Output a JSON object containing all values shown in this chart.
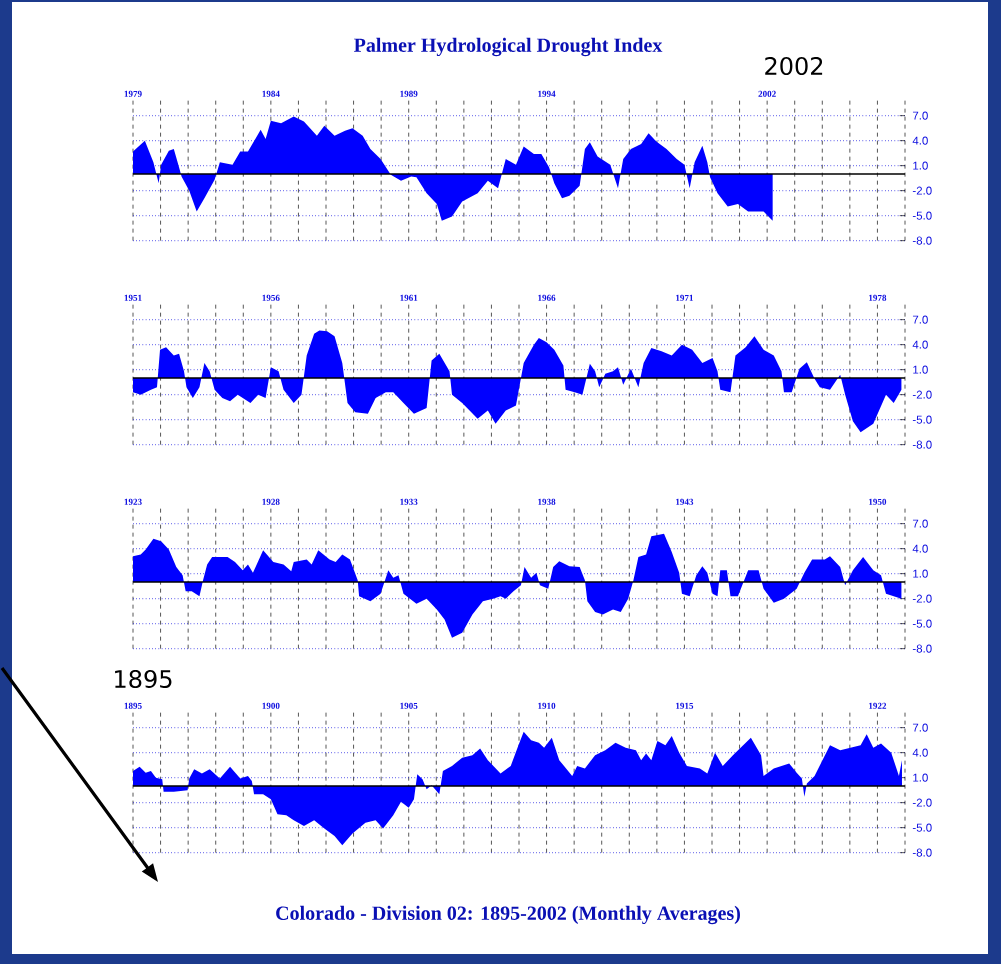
{
  "chart_data": [
    {
      "type": "area",
      "title": "Palmer Hydrological Drought Index",
      "annotations": [
        "2002"
      ],
      "color": "#0000ff",
      "grid": true,
      "ref_lines": [
        {
          "axis": "y",
          "value": 0,
          "color": "#000000"
        }
      ],
      "xlim": [
        1979,
        2007
      ],
      "ylim": [
        -8,
        9
      ],
      "xticks": [
        1979,
        {
          "value": 1980,
          "label": null
        },
        {
          "value": 1981,
          "label": null
        },
        {
          "value": 1982,
          "label": null
        },
        {
          "value": 1983,
          "label": null
        },
        1984,
        {
          "value": 1985,
          "label": null
        },
        {
          "value": 1986,
          "label": null
        },
        {
          "value": 1987,
          "label": null
        },
        {
          "value": 1988,
          "label": null
        },
        1989,
        {
          "value": 1990,
          "label": null
        },
        {
          "value": 1991,
          "label": null
        },
        {
          "value": 1992,
          "label": null
        },
        {
          "value": 1993,
          "label": null
        },
        1994,
        {
          "value": 1995,
          "label": null
        },
        {
          "value": 1996,
          "label": null
        },
        {
          "value": 1997,
          "label": null
        },
        {
          "value": 1998,
          "label": null
        },
        {
          "value": 1999,
          "label": null
        },
        {
          "value": 2000,
          "label": null
        },
        {
          "value": 2001,
          "label": null
        },
        2002,
        {
          "value": 2003,
          "label": null
        },
        {
          "value": 2004,
          "label": null
        },
        {
          "value": 2005,
          "label": null
        },
        {
          "value": 2006,
          "label": null
        },
        {
          "value": 2007,
          "label": null
        }
      ],
      "yticks": [
        {
          "value": 7,
          "label": "7.0"
        },
        {
          "value": 4,
          "label": "4.0"
        },
        {
          "value": 1,
          "label": "1.0"
        },
        {
          "value": -2,
          "label": "-2.0"
        },
        {
          "value": -5,
          "label": "-5.0"
        },
        {
          "value": -8,
          "label": "-8.0"
        }
      ],
      "x": [
        1979.0,
        1979.43,
        1979.74,
        1979.93,
        1980.02,
        1980.3,
        1980.48,
        1980.67,
        1980.76,
        1981.04,
        1981.31,
        1981.59,
        1981.96,
        1982.15,
        1982.61,
        1982.89,
        1983.17,
        1983.63,
        1983.81,
        1984.0,
        1984.37,
        1984.83,
        1985.2,
        1985.67,
        1985.94,
        1986.31,
        1986.69,
        1986.96,
        1987.33,
        1987.61,
        1987.98,
        1988.35,
        1988.72,
        1989.09,
        1989.28,
        1989.65,
        1990.02,
        1990.2,
        1990.57,
        1990.94,
        1991.5,
        1991.87,
        1992.24,
        1992.52,
        1992.89,
        1993.17,
        1993.54,
        1993.81,
        1994.09,
        1994.28,
        1994.56,
        1994.83,
        1995.2,
        1995.39,
        1995.57,
        1995.85,
        1996.31,
        1996.59,
        1996.78,
        1997.06,
        1997.43,
        1997.7,
        1997.98,
        1998.35,
        1998.72,
        1999.0,
        1999.19,
        1999.37,
        1999.65,
        1999.83,
        1999.93,
        2000.2,
        2000.57,
        2000.94,
        2001.31,
        2001.87,
        2002.2
      ],
      "values": [
        2.7,
        4.0,
        1.4,
        -1.1,
        1.1,
        2.8,
        3.0,
        0.8,
        -0.3,
        -2.0,
        -4.5,
        -2.9,
        -0.7,
        1.4,
        1.1,
        2.7,
        2.7,
        5.3,
        4.2,
        6.4,
        6.1,
        6.9,
        6.3,
        4.6,
        5.8,
        4.6,
        5.2,
        5.5,
        4.6,
        3.0,
        1.8,
        -0.1,
        -0.8,
        -0.3,
        -0.4,
        -2.3,
        -3.6,
        -5.6,
        -5.1,
        -3.3,
        -2.3,
        -0.8,
        -1.7,
        1.8,
        1.1,
        3.3,
        2.4,
        2.4,
        0.8,
        -1.1,
        -2.9,
        -2.6,
        -1.4,
        3.0,
        3.8,
        2.1,
        1.1,
        -1.7,
        1.8,
        3.0,
        3.6,
        4.9,
        3.9,
        3.0,
        1.8,
        1.1,
        -1.7,
        1.4,
        3.4,
        1.4,
        -0.4,
        -2.3,
        -3.9,
        -3.6,
        -4.5,
        -4.5,
        -5.6
      ]
    },
    {
      "type": "area",
      "color": "#0000ff",
      "grid": true,
      "ref_lines": [
        {
          "axis": "y",
          "value": 0,
          "color": "#000000"
        }
      ],
      "xlim": [
        1951,
        1979
      ],
      "ylim": [
        -8,
        9
      ],
      "xticks": [
        1951,
        {
          "value": 1952,
          "label": null
        },
        {
          "value": 1953,
          "label": null
        },
        {
          "value": 1954,
          "label": null
        },
        {
          "value": 1955,
          "label": null
        },
        1956,
        {
          "value": 1957,
          "label": null
        },
        {
          "value": 1958,
          "label": null
        },
        {
          "value": 1959,
          "label": null
        },
        {
          "value": 1960,
          "label": null
        },
        1961,
        {
          "value": 1962,
          "label": null
        },
        {
          "value": 1963,
          "label": null
        },
        {
          "value": 1964,
          "label": null
        },
        {
          "value": 1965,
          "label": null
        },
        1966,
        {
          "value": 1967,
          "label": null
        },
        {
          "value": 1968,
          "label": null
        },
        {
          "value": 1969,
          "label": null
        },
        {
          "value": 1970,
          "label": null
        },
        1971,
        {
          "value": 1972,
          "label": null
        },
        {
          "value": 1973,
          "label": null
        },
        {
          "value": 1974,
          "label": null
        },
        {
          "value": 1975,
          "label": null
        },
        {
          "value": 1976,
          "label": null
        },
        {
          "value": 1977,
          "label": null
        },
        1978,
        {
          "value": 1979,
          "label": null
        }
      ],
      "yticks": [
        {
          "value": 7,
          "label": "7.0"
        },
        {
          "value": 4,
          "label": "4.0"
        },
        {
          "value": 1,
          "label": "1.0"
        },
        {
          "value": -2,
          "label": "-2.0"
        },
        {
          "value": -5,
          "label": "-5.0"
        },
        {
          "value": -8,
          "label": "-8.0"
        }
      ],
      "x": [
        1951.0,
        1951.28,
        1951.65,
        1951.87,
        1951.98,
        1952.2,
        1952.48,
        1952.67,
        1952.85,
        1952.94,
        1953.17,
        1953.41,
        1953.59,
        1953.78,
        1953.96,
        1954.24,
        1954.52,
        1954.8,
        1955.26,
        1955.54,
        1955.81,
        1956.0,
        1956.28,
        1956.46,
        1956.83,
        1957.11,
        1957.3,
        1957.57,
        1957.76,
        1958.04,
        1958.31,
        1958.59,
        1958.78,
        1959.06,
        1959.52,
        1959.8,
        1960.17,
        1960.44,
        1960.81,
        1961.19,
        1961.65,
        1961.83,
        1962.11,
        1962.48,
        1962.57,
        1962.94,
        1963.5,
        1963.87,
        1964.15,
        1964.52,
        1964.89,
        1965.17,
        1965.54,
        1965.72,
        1966.0,
        1966.28,
        1966.61,
        1966.69,
        1967.02,
        1967.3,
        1967.57,
        1967.76,
        1967.91,
        1968.13,
        1968.41,
        1968.59,
        1968.78,
        1969.06,
        1969.33,
        1969.52,
        1969.8,
        1970.17,
        1970.54,
        1970.91,
        1971.28,
        1971.65,
        1972.02,
        1972.2,
        1972.3,
        1972.67,
        1972.85,
        1973.22,
        1973.54,
        1973.87,
        1974.24,
        1974.52,
        1974.61,
        1974.89,
        1975.17,
        1975.44,
        1975.72,
        1975.91,
        1976.28,
        1976.65,
        1976.83,
        1977.11,
        1977.39,
        1977.85,
        1978.31,
        1978.59,
        1978.87
      ],
      "values": [
        -1.7,
        -2.0,
        -1.4,
        -1.1,
        3.4,
        3.7,
        2.7,
        2.9,
        0.8,
        -1.1,
        -2.4,
        -1.1,
        1.8,
        0.8,
        -1.4,
        -2.4,
        -2.8,
        -2.0,
        -3.0,
        -2.0,
        -2.4,
        1.3,
        0.8,
        -1.4,
        -3.0,
        -2.0,
        2.7,
        5.3,
        5.7,
        5.6,
        5.0,
        1.8,
        -3.0,
        -4.1,
        -4.3,
        -2.4,
        -1.7,
        -1.7,
        -3.0,
        -4.3,
        -3.6,
        2.1,
        2.9,
        0.8,
        -2.0,
        -3.0,
        -4.9,
        -3.9,
        -5.5,
        -3.9,
        -3.3,
        1.8,
        4.0,
        4.8,
        4.3,
        3.4,
        1.5,
        -1.4,
        -1.7,
        -2.0,
        1.7,
        0.8,
        -1.1,
        0.5,
        0.8,
        1.3,
        -0.8,
        1.1,
        -1.1,
        1.8,
        3.6,
        3.2,
        2.7,
        4.0,
        3.4,
        1.8,
        2.4,
        0.8,
        -1.4,
        -1.7,
        2.7,
        3.7,
        5.0,
        3.4,
        2.7,
        0.8,
        -1.7,
        -1.7,
        1.1,
        1.9,
        -0.1,
        -1.1,
        -1.4,
        0.4,
        -2.0,
        -5.2,
        -6.5,
        -5.5,
        -2.0,
        -3.0,
        -1.4
      ]
    },
    {
      "type": "area",
      "color": "#0000ff",
      "grid": true,
      "ref_lines": [
        {
          "axis": "y",
          "value": 0,
          "color": "#000000"
        }
      ],
      "xlim": [
        1923,
        1951
      ],
      "ylim": [
        -8,
        9
      ],
      "xticks": [
        1923,
        {
          "value": 1924,
          "label": null
        },
        {
          "value": 1925,
          "label": null
        },
        {
          "value": 1926,
          "label": null
        },
        {
          "value": 1927,
          "label": null
        },
        1928,
        {
          "value": 1929,
          "label": null
        },
        {
          "value": 1930,
          "label": null
        },
        {
          "value": 1931,
          "label": null
        },
        {
          "value": 1932,
          "label": null
        },
        1933,
        {
          "value": 1934,
          "label": null
        },
        {
          "value": 1935,
          "label": null
        },
        {
          "value": 1936,
          "label": null
        },
        {
          "value": 1937,
          "label": null
        },
        1938,
        {
          "value": 1939,
          "label": null
        },
        {
          "value": 1940,
          "label": null
        },
        {
          "value": 1941,
          "label": null
        },
        {
          "value": 1942,
          "label": null
        },
        1943,
        {
          "value": 1944,
          "label": null
        },
        {
          "value": 1945,
          "label": null
        },
        {
          "value": 1946,
          "label": null
        },
        {
          "value": 1947,
          "label": null
        },
        {
          "value": 1948,
          "label": null
        },
        {
          "value": 1949,
          "label": null
        },
        1950,
        {
          "value": 1951,
          "label": null
        }
      ],
      "yticks": [
        {
          "value": 7,
          "label": "7.0"
        },
        {
          "value": 4,
          "label": "4.0"
        },
        {
          "value": 1,
          "label": "1.0"
        },
        {
          "value": -2,
          "label": "-2.0"
        },
        {
          "value": -5,
          "label": "-5.0"
        },
        {
          "value": -8,
          "label": "-8.0"
        }
      ],
      "x": [
        1923.0,
        1923.28,
        1923.46,
        1923.74,
        1924.02,
        1924.3,
        1924.57,
        1924.8,
        1924.91,
        1925.13,
        1925.41,
        1925.54,
        1925.69,
        1925.87,
        1926.43,
        1926.7,
        1926.98,
        1927.17,
        1927.35,
        1927.72,
        1928.09,
        1928.46,
        1928.74,
        1928.83,
        1929.3,
        1929.48,
        1929.72,
        1930.13,
        1930.35,
        1930.59,
        1930.87,
        1931.15,
        1931.2,
        1931.61,
        1931.98,
        1932.26,
        1932.44,
        1932.63,
        1932.81,
        1933.28,
        1933.65,
        1934.02,
        1934.3,
        1934.57,
        1934.94,
        1935.31,
        1935.69,
        1936.06,
        1936.33,
        1936.52,
        1936.8,
        1937.07,
        1937.2,
        1937.44,
        1937.63,
        1937.76,
        1938.06,
        1938.24,
        1938.46,
        1938.83,
        1939.2,
        1939.39,
        1939.48,
        1939.76,
        1940.04,
        1940.41,
        1940.69,
        1940.96,
        1941.15,
        1941.33,
        1941.61,
        1941.8,
        1942.26,
        1942.54,
        1942.81,
        1942.91,
        1943.19,
        1943.43,
        1943.65,
        1943.83,
        1944.02,
        1944.2,
        1944.3,
        1944.54,
        1944.67,
        1944.94,
        1945.31,
        1945.69,
        1945.87,
        1946.24,
        1946.61,
        1947.07,
        1947.35,
        1947.63,
        1948.09,
        1948.28,
        1948.65,
        1948.83,
        1949.11,
        1949.48,
        1949.85,
        1950.13,
        1950.31,
        1950.87
      ],
      "values": [
        3.1,
        3.3,
        3.9,
        5.2,
        4.9,
        3.9,
        1.8,
        0.8,
        -1.1,
        -1.1,
        -1.7,
        0.2,
        2.1,
        3.0,
        3.0,
        2.4,
        1.4,
        2.1,
        1.1,
        3.8,
        2.4,
        2.1,
        1.3,
        2.4,
        2.7,
        2.1,
        3.8,
        2.7,
        2.4,
        3.3,
        2.7,
        0.2,
        -1.7,
        -2.3,
        -1.4,
        1.4,
        0.5,
        0.8,
        -1.4,
        -2.6,
        -2.0,
        -3.3,
        -4.5,
        -6.7,
        -6.1,
        -3.9,
        -2.3,
        -2.0,
        -1.7,
        -2.0,
        -1.1,
        -0.4,
        1.8,
        0.5,
        1.1,
        -0.4,
        -0.8,
        1.8,
        2.5,
        1.9,
        1.8,
        0.2,
        -2.3,
        -3.6,
        -3.9,
        -3.3,
        -3.6,
        -2.0,
        0.2,
        3.0,
        3.3,
        5.5,
        5.8,
        3.6,
        1.1,
        -1.4,
        -1.7,
        0.8,
        1.9,
        1.1,
        -1.4,
        -1.7,
        1.4,
        1.4,
        -1.7,
        -1.7,
        1.4,
        1.4,
        -0.8,
        -2.5,
        -2.0,
        -0.8,
        1.1,
        2.7,
        2.7,
        3.1,
        1.8,
        -0.4,
        1.4,
        3.0,
        1.4,
        0.8,
        -1.4,
        -2.0
      ]
    },
    {
      "type": "area",
      "annotations": [
        "1895",
        "Colorado - Division 02:  1895-2002 (Monthly Averages)"
      ],
      "color": "#0000ff",
      "grid": true,
      "ref_lines": [
        {
          "axis": "y",
          "value": 0,
          "color": "#000000"
        }
      ],
      "xlim": [
        1895,
        1923
      ],
      "ylim": [
        -8,
        9
      ],
      "xticks": [
        1895,
        {
          "value": 1896,
          "label": null
        },
        {
          "value": 1897,
          "label": null
        },
        {
          "value": 1898,
          "label": null
        },
        {
          "value": 1899,
          "label": null
        },
        1900,
        {
          "value": 1901,
          "label": null
        },
        {
          "value": 1902,
          "label": null
        },
        {
          "value": 1903,
          "label": null
        },
        {
          "value": 1904,
          "label": null
        },
        1905,
        {
          "value": 1906,
          "label": null
        },
        {
          "value": 1907,
          "label": null
        },
        {
          "value": 1908,
          "label": null
        },
        {
          "value": 1909,
          "label": null
        },
        1910,
        {
          "value": 1911,
          "label": null
        },
        {
          "value": 1912,
          "label": null
        },
        {
          "value": 1913,
          "label": null
        },
        {
          "value": 1914,
          "label": null
        },
        1915,
        {
          "value": 1916,
          "label": null
        },
        {
          "value": 1917,
          "label": null
        },
        {
          "value": 1918,
          "label": null
        },
        {
          "value": 1919,
          "label": null
        },
        {
          "value": 1920,
          "label": null
        },
        {
          "value": 1921,
          "label": null
        },
        1922,
        {
          "value": 1923,
          "label": null
        }
      ],
      "yticks": [
        {
          "value": 7,
          "label": "7.0"
        },
        {
          "value": 4,
          "label": "4.0"
        },
        {
          "value": 1,
          "label": "1.0"
        },
        {
          "value": -2,
          "label": "-2.0"
        },
        {
          "value": -5,
          "label": "-5.0"
        },
        {
          "value": -8,
          "label": "-8.0"
        }
      ],
      "x": [
        1895.0,
        1895.24,
        1895.46,
        1895.65,
        1895.83,
        1896.06,
        1896.11,
        1896.48,
        1896.98,
        1897.04,
        1897.22,
        1897.5,
        1897.78,
        1898.15,
        1898.52,
        1898.89,
        1899.17,
        1899.31,
        1899.39,
        1899.72,
        1900.0,
        1900.24,
        1900.56,
        1900.83,
        1901.2,
        1901.57,
        1901.94,
        1902.31,
        1902.59,
        1902.96,
        1903.43,
        1903.8,
        1904.07,
        1904.44,
        1904.72,
        1905.0,
        1905.19,
        1905.31,
        1905.5,
        1905.65,
        1905.83,
        1906.11,
        1906.24,
        1906.57,
        1906.94,
        1907.31,
        1907.59,
        1907.87,
        1908.33,
        1908.7,
        1908.98,
        1909.17,
        1909.44,
        1909.72,
        1909.91,
        1910.19,
        1910.46,
        1910.93,
        1911.11,
        1911.39,
        1911.76,
        1912.13,
        1912.5,
        1912.87,
        1913.24,
        1913.43,
        1913.61,
        1913.8,
        1914.02,
        1914.31,
        1914.54,
        1914.81,
        1915.09,
        1915.56,
        1915.83,
        1916.11,
        1916.39,
        1916.76,
        1917.13,
        1917.41,
        1917.78,
        1917.87,
        1918.24,
        1918.8,
        1919.07,
        1919.26,
        1919.35,
        1919.44,
        1919.72,
        1920.28,
        1920.65,
        1921.02,
        1921.39,
        1921.61,
        1921.85,
        1922.13,
        1922.5,
        1922.78,
        1922.89
      ],
      "values": [
        1.8,
        2.3,
        1.6,
        1.8,
        1.0,
        0.8,
        -0.7,
        -0.7,
        -0.5,
        0.9,
        2.0,
        1.5,
        2.0,
        0.9,
        2.3,
        0.9,
        1.2,
        0.6,
        -1.0,
        -1.0,
        -1.6,
        -3.4,
        -3.5,
        -4.1,
        -4.8,
        -4.1,
        -5.1,
        -6.0,
        -7.1,
        -5.7,
        -4.4,
        -4.1,
        -5.1,
        -3.5,
        -1.9,
        -2.6,
        -1.6,
        1.4,
        0.8,
        -0.4,
        0.1,
        -1.0,
        1.8,
        2.4,
        3.4,
        3.7,
        4.5,
        3.1,
        1.5,
        2.4,
        4.9,
        6.5,
        5.5,
        5.2,
        4.6,
        5.8,
        3.1,
        1.2,
        2.4,
        2.1,
        3.7,
        4.3,
        5.2,
        4.6,
        4.3,
        3.1,
        3.9,
        3.1,
        5.4,
        4.9,
        6.0,
        4.0,
        2.4,
        2.1,
        1.5,
        4.0,
        2.4,
        3.7,
        4.9,
        5.8,
        3.7,
        1.2,
        2.1,
        2.7,
        1.6,
        0.9,
        -1.3,
        0.3,
        1.2,
        4.9,
        4.3,
        4.6,
        4.9,
        6.2,
        4.6,
        5.1,
        4.0,
        1.2,
        3.1
      ]
    }
  ]
}
